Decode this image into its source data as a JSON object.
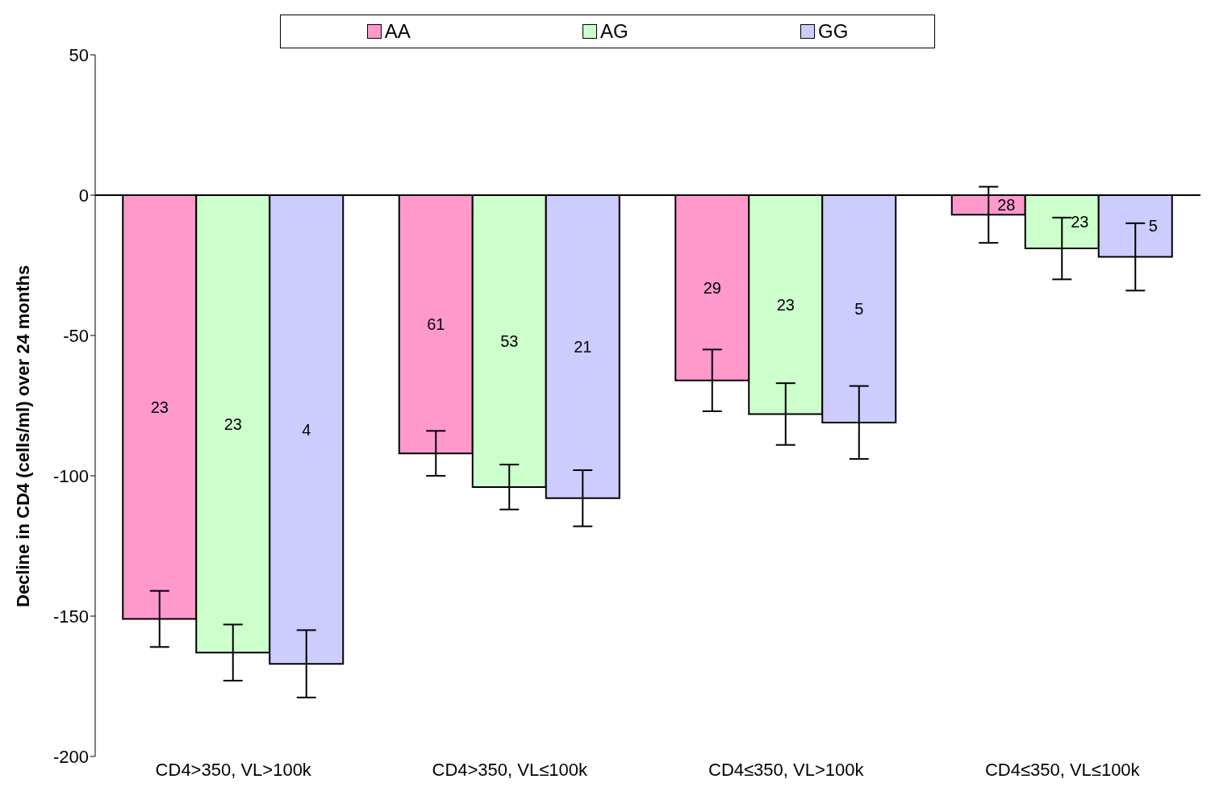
{
  "chart_data": {
    "type": "bar",
    "ylabel": "Decline in CD4 (cells/ml) over 24 months",
    "categories": [
      "CD4>350, VL>100k",
      "CD4>350, VL≤100k",
      "CD4≤350, VL>100k",
      "CD4≤350, VL≤100k"
    ],
    "series": [
      {
        "name": "AA",
        "color": "#ff99cc",
        "values": [
          -151,
          -92,
          -66,
          -7
        ],
        "errors": [
          10,
          8,
          11,
          10
        ]
      },
      {
        "name": "AG",
        "color": "#ccffcc",
        "values": [
          -163,
          -104,
          -78,
          -19
        ],
        "errors": [
          10,
          8,
          11,
          11
        ]
      },
      {
        "name": "GG",
        "color": "#ccccff",
        "values": [
          -167,
          -108,
          -81,
          -22
        ],
        "errors": [
          12,
          10,
          13,
          12
        ]
      }
    ],
    "annotations": [
      "23",
      "23",
      "4",
      "61",
      "53",
      "21",
      "29",
      "23",
      "5",
      "28",
      "23",
      "5"
    ],
    "ylim": [
      -200,
      50
    ],
    "yticks": [
      -200,
      -150,
      -100,
      -50,
      0,
      50
    ],
    "ref_lines": [
      {
        "axis": "y",
        "value": 0
      }
    ],
    "grid": false,
    "legend": "top"
  }
}
